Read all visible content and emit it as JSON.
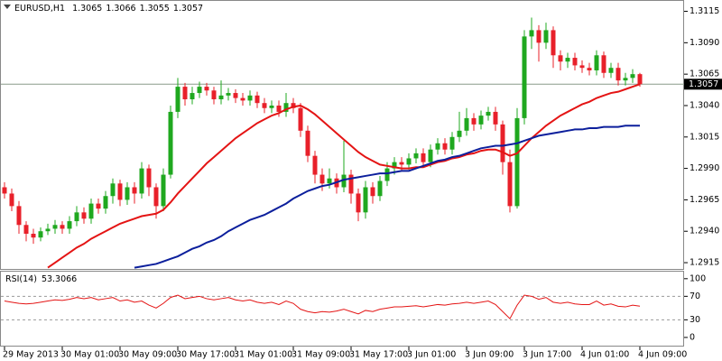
{
  "chart_data": [
    {
      "type": "candlestick",
      "title": "EURUSD,H1",
      "ohlc_header": [
        1.3065,
        1.3066,
        1.3055,
        1.3057
      ],
      "categories": [
        "29 May 2013",
        null,
        null,
        null,
        null,
        null,
        null,
        null,
        "30 May 01:00",
        null,
        null,
        null,
        null,
        null,
        null,
        null,
        "30 May 09:00",
        null,
        null,
        null,
        null,
        null,
        null,
        null,
        "30 May 17:00",
        null,
        null,
        null,
        null,
        null,
        null,
        null,
        "31 May 01:00",
        null,
        null,
        null,
        null,
        null,
        null,
        null,
        "31 May 09:00",
        null,
        null,
        null,
        null,
        null,
        null,
        null,
        "31 May 17:00",
        null,
        null,
        null,
        null,
        null,
        null,
        null,
        "3 Jun 01:00",
        null,
        null,
        null,
        null,
        null,
        null,
        null,
        "3 Jun 09:00",
        null,
        null,
        null,
        null,
        null,
        null,
        null,
        "3 Jun 17:00",
        null,
        null,
        null,
        null,
        null,
        null,
        null,
        "4 Jun 01:00",
        null,
        null,
        null,
        null,
        null,
        null,
        null,
        "4 Jun 09:00"
      ],
      "open": [
        1.2975,
        1.297,
        1.296,
        1.2945,
        1.2938,
        1.2935,
        1.294,
        1.2942,
        1.2945,
        1.2942,
        1.2948,
        1.2955,
        1.295,
        1.2962,
        1.2958,
        1.2968,
        1.2978,
        1.2965,
        1.2975,
        1.297,
        1.299,
        1.2975,
        1.296,
        1.2985,
        1.3035,
        1.3055,
        1.3045,
        1.305,
        1.3055,
        1.3052,
        1.3045,
        1.3048,
        1.305,
        1.3046,
        1.3044,
        1.3048,
        1.3042,
        1.3038,
        1.304,
        1.3035,
        1.3042,
        1.3038,
        1.302,
        1.3,
        1.2985,
        1.2978,
        1.2982,
        1.2975,
        1.2985,
        1.297,
        1.2955,
        1.2975,
        1.2968,
        1.298,
        1.299,
        1.2995,
        1.2993,
        1.2998,
        1.3002,
        1.2995,
        1.3005,
        1.301,
        1.3005,
        1.3015,
        1.302,
        1.303,
        1.3025,
        1.3032,
        1.3035,
        1.3025,
        1.2995,
        1.296,
        1.303,
        1.3095,
        1.31,
        1.309,
        1.31,
        1.308,
        1.3075,
        1.3078,
        1.3072,
        1.307,
        1.3068,
        1.308,
        1.3066,
        1.307,
        1.306,
        1.3062,
        1.3065
      ],
      "high": [
        1.2979,
        1.2974,
        1.2964,
        1.2948,
        1.2942,
        1.2943,
        1.2946,
        1.2949,
        1.2948,
        1.2952,
        1.296,
        1.2959,
        1.2966,
        1.2966,
        1.2972,
        1.2982,
        1.2981,
        1.2979,
        1.2979,
        1.2995,
        1.2993,
        1.2978,
        1.299,
        1.304,
        1.3062,
        1.3058,
        1.3055,
        1.3059,
        1.3058,
        1.3055,
        1.306,
        1.3054,
        1.3053,
        1.305,
        1.3052,
        1.3051,
        1.3046,
        1.3044,
        1.3044,
        1.305,
        1.3046,
        1.3042,
        1.3024,
        1.3004,
        1.299,
        1.299,
        1.2986,
        1.3012,
        1.2989,
        1.2974,
        1.298,
        1.2979,
        1.2984,
        1.2995,
        1.2999,
        1.2999,
        1.3002,
        1.3006,
        1.3006,
        1.3009,
        1.3014,
        1.3014,
        1.3019,
        1.3035,
        1.3038,
        1.3034,
        1.3036,
        1.3039,
        1.3039,
        1.3028,
        1.3005,
        1.3038,
        1.31,
        1.311,
        1.3104,
        1.3106,
        1.3103,
        1.3084,
        1.3082,
        1.3082,
        1.3076,
        1.3074,
        1.3084,
        1.3083,
        1.3074,
        1.3074,
        1.3066,
        1.3069,
        1.3066
      ],
      "low": [
        1.2966,
        1.2956,
        1.2938,
        1.2932,
        1.293,
        1.2932,
        1.2937,
        1.2938,
        1.2938,
        1.2938,
        1.2944,
        1.2946,
        1.2946,
        1.2954,
        1.2954,
        1.2962,
        1.296,
        1.2961,
        1.2962,
        1.2966,
        1.2968,
        1.295,
        1.2956,
        1.2982,
        1.303,
        1.304,
        1.3041,
        1.3046,
        1.3048,
        1.3041,
        1.3041,
        1.3044,
        1.3042,
        1.304,
        1.304,
        1.3038,
        1.3034,
        1.3034,
        1.3031,
        1.3031,
        1.3034,
        1.3015,
        1.2995,
        1.2978,
        1.2972,
        1.2974,
        1.297,
        1.2971,
        1.2962,
        1.2948,
        1.295,
        1.2962,
        1.2964,
        1.2976,
        1.2985,
        1.2988,
        1.2989,
        1.2994,
        1.2991,
        1.2991,
        1.3001,
        1.3001,
        1.3001,
        1.3011,
        1.3016,
        1.302,
        1.3021,
        1.3028,
        1.302,
        1.2985,
        1.2955,
        1.2958,
        1.3025,
        1.3085,
        1.3075,
        1.3085,
        1.307,
        1.3068,
        1.307,
        1.3068,
        1.3066,
        1.3064,
        1.3064,
        1.3062,
        1.3062,
        1.3056,
        1.3056,
        1.3058,
        1.3055
      ],
      "close": [
        1.297,
        1.296,
        1.2945,
        1.2938,
        1.2935,
        1.294,
        1.2942,
        1.2945,
        1.2942,
        1.2948,
        1.2955,
        1.295,
        1.2962,
        1.2958,
        1.2968,
        1.2978,
        1.2965,
        1.2975,
        1.297,
        1.299,
        1.2975,
        1.296,
        1.2985,
        1.3035,
        1.3055,
        1.3045,
        1.305,
        1.3055,
        1.3052,
        1.3045,
        1.3048,
        1.305,
        1.3046,
        1.3044,
        1.3048,
        1.3042,
        1.3038,
        1.304,
        1.3035,
        1.3042,
        1.3038,
        1.302,
        1.3,
        1.2985,
        1.2978,
        1.2982,
        1.2975,
        1.2985,
        1.297,
        1.2955,
        1.2975,
        1.2968,
        1.298,
        1.299,
        1.2995,
        1.2993,
        1.2998,
        1.3002,
        1.2995,
        1.3005,
        1.301,
        1.3005,
        1.3015,
        1.302,
        1.303,
        1.3025,
        1.3032,
        1.3035,
        1.3025,
        1.2995,
        1.296,
        1.303,
        1.3095,
        1.31,
        1.309,
        1.31,
        1.308,
        1.3075,
        1.3078,
        1.3072,
        1.307,
        1.3068,
        1.308,
        1.3066,
        1.307,
        1.306,
        1.3062,
        1.3065,
        1.3057
      ],
      "up_color": "#1fa81f",
      "down_color": "#e8202a",
      "series": [
        {
          "color": "#e41414",
          "values": [
            null,
            null,
            null,
            null,
            null,
            null,
            1.2911,
            1.2915,
            1.2919,
            1.2923,
            1.2927,
            1.293,
            1.2934,
            1.2937,
            1.294,
            1.2943,
            1.2946,
            1.2948,
            1.295,
            1.2952,
            1.2953,
            1.2954,
            1.2957,
            1.2963,
            1.297,
            1.2976,
            1.2982,
            1.2988,
            1.2994,
            1.2999,
            1.3004,
            1.3009,
            1.3014,
            1.3018,
            1.3022,
            1.3026,
            1.3029,
            1.3032,
            1.3034,
            1.3037,
            1.3039,
            1.304,
            1.3037,
            1.3033,
            1.3028,
            1.3023,
            1.3018,
            1.3013,
            1.3008,
            1.3003,
            1.2999,
            1.2996,
            1.2993,
            1.2992,
            1.2991,
            1.299,
            1.299,
            1.2991,
            1.2991,
            1.2993,
            1.2995,
            1.2996,
            1.2998,
            1.2999,
            1.3001,
            1.3002,
            1.3004,
            1.3005,
            1.3005,
            1.3003,
            1.3,
            1.3002,
            1.3008,
            1.3014,
            1.3019,
            1.3024,
            1.3028,
            1.3032,
            1.3035,
            1.3038,
            1.3041,
            1.3043,
            1.3046,
            1.3048,
            1.305,
            1.3051,
            1.3053,
            1.3055,
            1.3057
          ]
        },
        {
          "color": "#0c1f9c",
          "values": [
            null,
            null,
            null,
            null,
            null,
            null,
            null,
            null,
            null,
            null,
            null,
            null,
            null,
            null,
            null,
            null,
            null,
            null,
            1.2911,
            1.2912,
            1.2913,
            1.2914,
            1.2916,
            1.2918,
            1.292,
            1.2923,
            1.2926,
            1.2928,
            1.2931,
            1.2933,
            1.2936,
            1.294,
            1.2943,
            1.2946,
            1.2949,
            1.2951,
            1.2953,
            1.2956,
            1.2959,
            1.2962,
            1.2966,
            1.2969,
            1.2972,
            1.2974,
            1.2976,
            1.2977,
            1.2979,
            1.2981,
            1.2982,
            1.2983,
            1.2984,
            1.2985,
            1.2986,
            1.2986,
            1.2987,
            1.2988,
            1.2988,
            1.299,
            1.2992,
            1.2994,
            1.2996,
            1.2997,
            1.2999,
            1.3,
            1.3002,
            1.3004,
            1.3006,
            1.3007,
            1.3008,
            1.3008,
            1.3009,
            1.301,
            1.3012,
            1.3014,
            1.3016,
            1.3017,
            1.3018,
            1.3019,
            1.302,
            1.3021,
            1.3021,
            1.3022,
            1.3022,
            1.3023,
            1.3023,
            1.3023,
            1.3024,
            1.3024,
            1.3024
          ]
        }
      ],
      "current_price": 1.3057,
      "ylim": [
        1.291,
        1.3124
      ],
      "yticks": [
        1.3115,
        {
          "value": 1.309,
          "label": "1.3090"
        },
        1.3065,
        {
          "value": 1.304,
          "label": "1.3040"
        },
        1.3015,
        {
          "value": 1.299,
          "label": "1.2990"
        },
        1.2965,
        {
          "value": 1.294,
          "label": "1.2940"
        },
        1.2915
      ]
    },
    {
      "type": "line",
      "title": "RSI(14)",
      "last_value": 53.3066,
      "color": "#e41414",
      "values": [
        62,
        60,
        58,
        57,
        58,
        60,
        62,
        64,
        63,
        65,
        68,
        66,
        68,
        64,
        66,
        68,
        62,
        64,
        60,
        62,
        55,
        50,
        58,
        68,
        72,
        66,
        68,
        70,
        66,
        64,
        66,
        68,
        64,
        62,
        64,
        60,
        58,
        60,
        56,
        62,
        58,
        48,
        44,
        42,
        44,
        43,
        45,
        48,
        44,
        40,
        46,
        44,
        48,
        50,
        52,
        52,
        53,
        54,
        52,
        54,
        56,
        55,
        57,
        58,
        60,
        58,
        60,
        62,
        56,
        44,
        32,
        55,
        72,
        70,
        65,
        68,
        60,
        58,
        60,
        57,
        56,
        56,
        62,
        55,
        57,
        53,
        52,
        55,
        53.3066
      ],
      "ylim": [
        -14,
        112
      ],
      "yticks": [
        100,
        70,
        30,
        0
      ],
      "levels": [
        70,
        30
      ]
    }
  ]
}
